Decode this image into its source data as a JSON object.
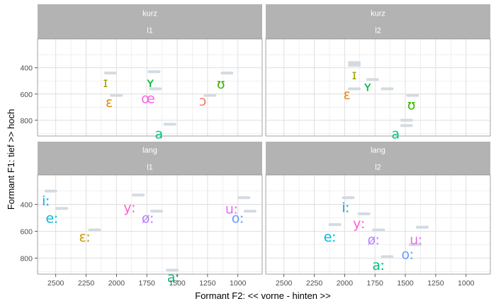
{
  "chart_data": {
    "type": "scatter",
    "title": "",
    "xlabel": "Formant F2: << vorne - hinten >>",
    "ylabel": "Formant F1: tief >> hoch",
    "xlim": [
      2650,
      800
    ],
    "ylim": [
      180,
      920
    ],
    "x_reversed": true,
    "y_reversed": true,
    "x_ticks": [
      2500,
      2250,
      2000,
      1750,
      1500,
      1250,
      1000
    ],
    "x_tick_labels": [
      "2500",
      "2250",
      "2000",
      "1750",
      "1500",
      "1250",
      "1000"
    ],
    "y_ticks": [
      400,
      600,
      800
    ],
    "y_tick_labels": [
      "400",
      "600",
      "800"
    ],
    "grid": true,
    "facet_rows": [
      "kurz",
      "lang"
    ],
    "facet_cols": [
      "l1",
      "l2"
    ],
    "colors": {
      "ɪ": "#a3a500",
      "ʏ": "#00ba38",
      "ʊ": "#39b600",
      "ɛ": "#e58700",
      "œ": "#f564e3",
      "ɔ": "#f8766d",
      "a": "#00c08b",
      "iː": "#00b0f6",
      "eː": "#00bcd8",
      "ɛː": "#c09b00",
      "yː": "#fd61d1",
      "øː": "#b983ff",
      "uː": "#e76bf3",
      "oː": "#619cff",
      "aː": "#00bf7d",
      "marker": "#d3dbe2",
      "strip": "#b3b3b3",
      "grid": "#dcdcdc",
      "panel_border": "#8c8c8c"
    },
    "panels": [
      {
        "row_label": "kurz",
        "col_label": "l1",
        "points": [
          {
            "label": "ɪ",
            "x": 2090,
            "y": 510
          },
          {
            "label": "ʏ",
            "x": 1720,
            "y": 510
          },
          {
            "label": "ʊ",
            "x": 1140,
            "y": 520
          },
          {
            "label": "ɛ",
            "x": 2060,
            "y": 660
          },
          {
            "label": "œ",
            "x": 1740,
            "y": 630
          },
          {
            "label": "ɔ",
            "x": 1290,
            "y": 650
          },
          {
            "label": "a",
            "x": 1650,
            "y": 900
          }
        ],
        "markers": [
          {
            "x": 2050,
            "y": 440
          },
          {
            "x": 1690,
            "y": 430
          },
          {
            "x": 1090,
            "y": 440
          },
          {
            "x": 2000,
            "y": 610
          },
          {
            "x": 1680,
            "y": 560
          },
          {
            "x": 1230,
            "y": 610
          },
          {
            "x": 1560,
            "y": 830
          }
        ]
      },
      {
        "row_label": "kurz",
        "col_label": "l2",
        "points": [
          {
            "label": "ɪ",
            "x": 1920,
            "y": 450
          },
          {
            "label": "ʏ",
            "x": 1810,
            "y": 540
          },
          {
            "label": "ɛ",
            "x": 1980,
            "y": 600
          },
          {
            "label": "ʊ",
            "x": 1450,
            "y": 680
          },
          {
            "label": "a",
            "x": 1580,
            "y": 900
          }
        ],
        "markers": [
          {
            "x": 1920,
            "y": 360
          },
          {
            "x": 1920,
            "y": 380
          },
          {
            "x": 1770,
            "y": 490
          },
          {
            "x": 1920,
            "y": 560
          },
          {
            "x": 1650,
            "y": 560
          },
          {
            "x": 1440,
            "y": 610
          },
          {
            "x": 1490,
            "y": 800
          },
          {
            "x": 1490,
            "y": 840
          }
        ]
      },
      {
        "row_label": "lang",
        "col_label": "l1",
        "points": [
          {
            "label": "iː",
            "x": 2580,
            "y": 370
          },
          {
            "label": "eː",
            "x": 2530,
            "y": 500
          },
          {
            "label": "ɛː",
            "x": 2260,
            "y": 640
          },
          {
            "label": "yː",
            "x": 1890,
            "y": 420
          },
          {
            "label": "øː",
            "x": 1740,
            "y": 500
          },
          {
            "label": "uː",
            "x": 1050,
            "y": 430
          },
          {
            "label": "oː",
            "x": 1000,
            "y": 500
          },
          {
            "label": "aː",
            "x": 1530,
            "y": 940
          }
        ],
        "markers": [
          {
            "x": 2540,
            "y": 300
          },
          {
            "x": 2450,
            "y": 430
          },
          {
            "x": 2180,
            "y": 590
          },
          {
            "x": 1820,
            "y": 330
          },
          {
            "x": 1670,
            "y": 450
          },
          {
            "x": 950,
            "y": 350
          },
          {
            "x": 900,
            "y": 450
          },
          {
            "x": 1540,
            "y": 890
          }
        ]
      },
      {
        "row_label": "lang",
        "col_label": "l2",
        "points": [
          {
            "label": "iː",
            "x": 1990,
            "y": 420
          },
          {
            "label": "yː",
            "x": 1880,
            "y": 540
          },
          {
            "label": "eː",
            "x": 2120,
            "y": 640
          },
          {
            "label": "øː",
            "x": 1760,
            "y": 660
          },
          {
            "label": "uː",
            "x": 1410,
            "y": 660
          },
          {
            "label": "oː",
            "x": 1480,
            "y": 770
          },
          {
            "label": "aː",
            "x": 1720,
            "y": 850
          }
        ],
        "markers": [
          {
            "x": 1970,
            "y": 350
          },
          {
            "x": 1840,
            "y": 470
          },
          {
            "x": 2080,
            "y": 550
          },
          {
            "x": 1720,
            "y": 590
          },
          {
            "x": 1360,
            "y": 570
          },
          {
            "x": 1420,
            "y": 700
          },
          {
            "x": 1650,
            "y": 790
          }
        ]
      }
    ]
  }
}
